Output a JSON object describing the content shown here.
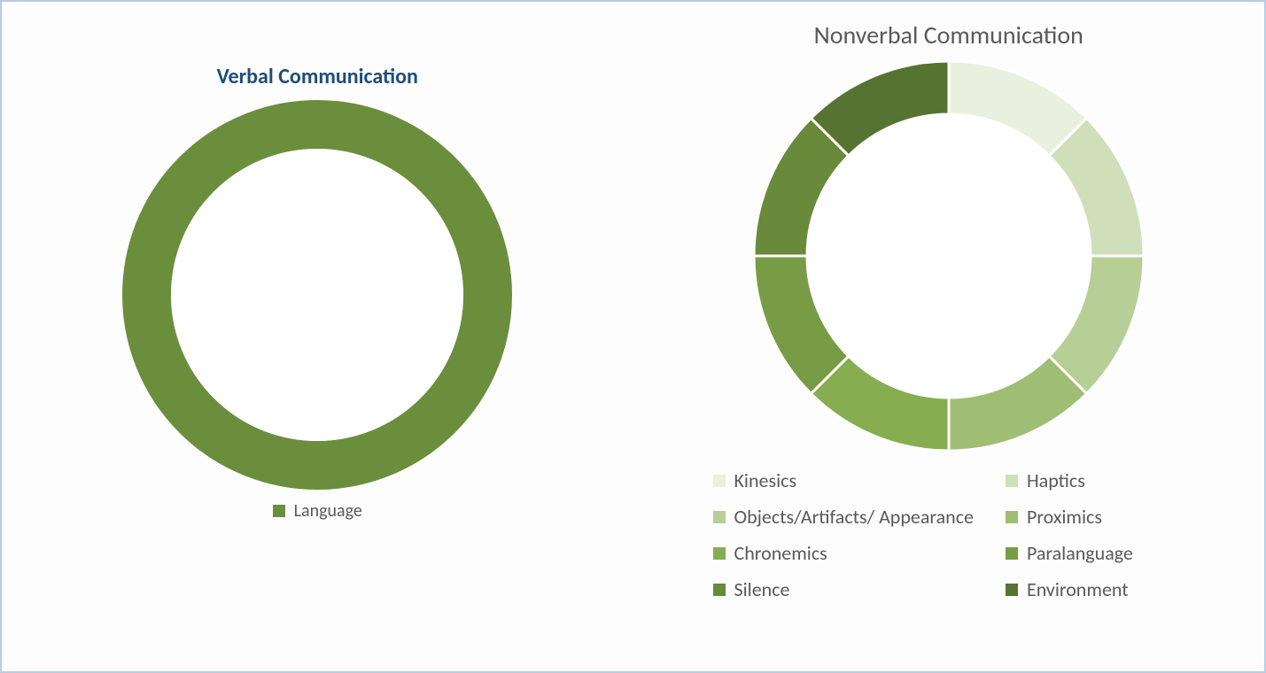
{
  "background_color": "#fdfdfe",
  "border_color": "#b8cce4",
  "verbal_chart": {
    "type": "donut",
    "title": "Verbal Communication",
    "title_color": "#1f4e79",
    "title_fontsize": 24,
    "title_weight": "bold",
    "outer_radius": 220,
    "inner_radius": 165,
    "center_fill": "#ffffff",
    "legend_font_color": "#595959",
    "legend_fontsize": 20,
    "segments": [
      {
        "label": "Language",
        "value": 100,
        "color": "#6b8e3d"
      }
    ]
  },
  "nonverbal_chart": {
    "type": "donut",
    "title": "Nonverbal Communication",
    "title_color": "#595959",
    "title_fontsize": 28,
    "title_weight": "normal",
    "outer_radius": 220,
    "inner_radius": 160,
    "center_fill": "#ffffff",
    "divider_color": "#ffffff",
    "divider_width": 3,
    "legend_font_color": "#595959",
    "legend_fontsize": 22,
    "segments": [
      {
        "label": "Kinesics",
        "value": 12.5,
        "color": "#e9f0df"
      },
      {
        "label": "Haptics",
        "value": 12.5,
        "color": "#cfdfb9"
      },
      {
        "label": "Objects/Artifacts/ Appearance",
        "value": 12.5,
        "color": "#b7ce96"
      },
      {
        "label": "Proximics",
        "value": 12.5,
        "color": "#9fbe73"
      },
      {
        "label": "Chronemics",
        "value": 12.5,
        "color": "#87ad51"
      },
      {
        "label": "Paralanguage",
        "value": 12.5,
        "color": "#789c45"
      },
      {
        "label": "Silence",
        "value": 12.5,
        "color": "#688a3a"
      },
      {
        "label": "Environment",
        "value": 12.5,
        "color": "#577331"
      }
    ]
  }
}
